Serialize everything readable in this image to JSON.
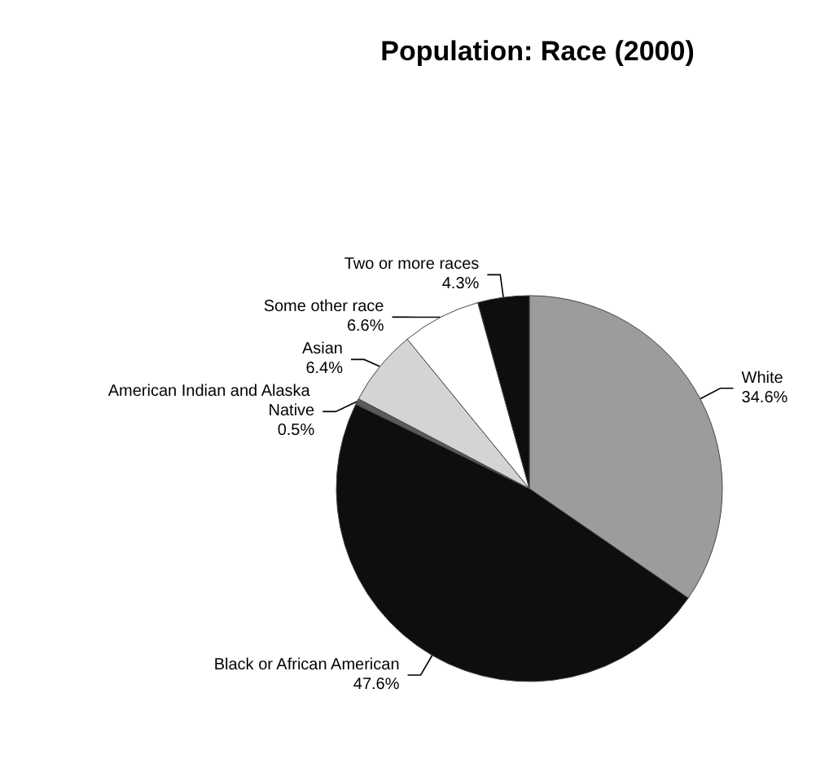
{
  "chart_data": {
    "type": "pie",
    "title": "Population: Race (2000)",
    "categories": [
      "White",
      "Black or African American",
      "American Indian and Alaska Native",
      "Asian",
      "Some other race",
      "Two or more races"
    ],
    "values": [
      34.6,
      47.6,
      0.5,
      6.4,
      6.6,
      4.3
    ],
    "colors": [
      "#9c9c9c",
      "#0e0e0e",
      "#5a5a5a",
      "#d4d4d4",
      "#ffffff",
      "#0e0e0e"
    ],
    "value_labels": [
      "34.6%",
      "47.6%",
      "0.5%",
      "6.4%",
      "6.6%",
      "4.3%"
    ],
    "legend": false
  }
}
